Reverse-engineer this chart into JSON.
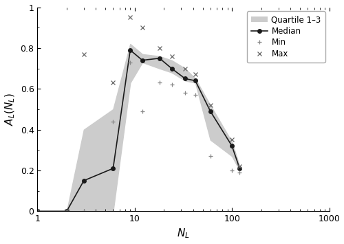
{
  "x": [
    1,
    2,
    3,
    6,
    9,
    12,
    18,
    24,
    33,
    42,
    60,
    100,
    120
  ],
  "median": [
    0.0,
    0.0,
    0.15,
    0.21,
    0.79,
    0.74,
    0.75,
    0.7,
    0.65,
    0.64,
    0.49,
    0.32,
    0.21
  ],
  "q1": [
    0.0,
    0.0,
    0.0,
    0.0,
    0.63,
    0.73,
    0.7,
    0.68,
    0.64,
    0.63,
    0.35,
    0.27,
    0.2
  ],
  "q3": [
    0.0,
    0.0,
    0.4,
    0.5,
    0.82,
    0.77,
    0.76,
    0.74,
    0.7,
    0.65,
    0.52,
    0.34,
    0.22
  ],
  "min": [
    0.0,
    0.0,
    0.0,
    0.44,
    0.73,
    0.49,
    0.63,
    0.62,
    0.58,
    0.57,
    0.27,
    0.2,
    0.19
  ],
  "max": [
    0.0,
    0.0,
    0.77,
    0.63,
    0.95,
    0.9,
    0.8,
    0.76,
    0.7,
    0.67,
    0.52,
    0.35,
    0.22
  ],
  "xlim": [
    1,
    1000
  ],
  "ylim": [
    0,
    1
  ],
  "xlabel": "$N_L$",
  "ylabel": "$A_L(N_L)$",
  "legend_labels": [
    "Quartile 1–3",
    "Median",
    "Min",
    "Max"
  ],
  "fill_color": "#cccccc",
  "line_color": "#1a1a1a",
  "min_color": "#888888",
  "max_color": "#666666",
  "figsize": [
    5.0,
    3.55
  ],
  "dpi": 100
}
